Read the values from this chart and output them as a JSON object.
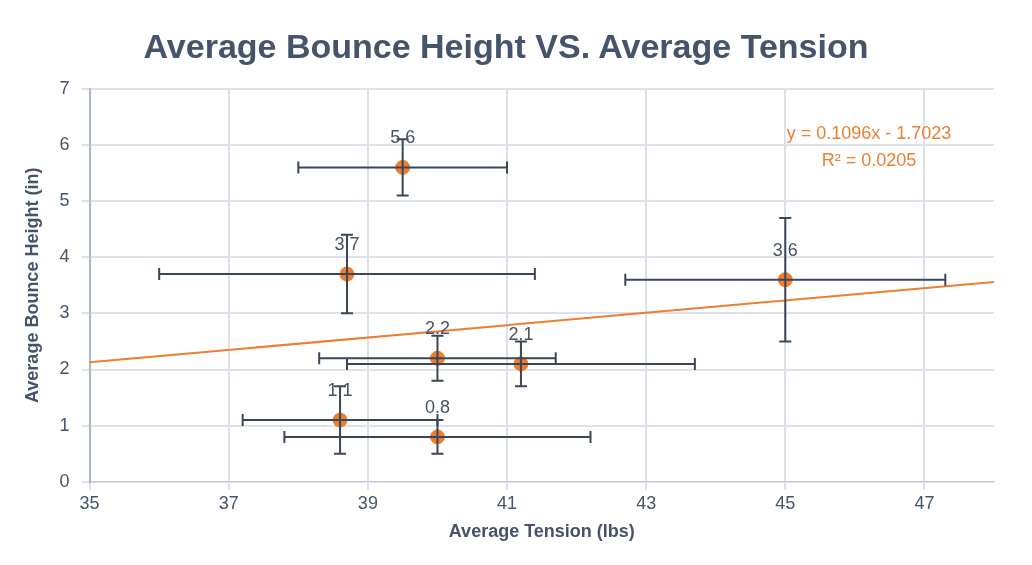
{
  "chart_data": {
    "type": "scatter",
    "title": "Average Bounce Height VS. Average Tension",
    "xlabel": "Average Tension (lbs)",
    "ylabel": "Average Bounce Height (in)",
    "series": [
      {
        "color": "#ed7d31",
        "marker": "circle",
        "x": [
          39.5,
          38.7,
          45,
          40,
          41.2,
          38.6,
          40
        ],
        "values": [
          5.6,
          3.7,
          3.6,
          2.2,
          2.1,
          1.1,
          0.8
        ],
        "value_labels": [
          "5.6",
          "3.7",
          "3.6",
          "2.2",
          "2.1",
          "1.1",
          "0.8"
        ],
        "errors": [
          0.5,
          0.7,
          1.1,
          0.4,
          0.4,
          0.6,
          0.3
        ],
        "xerrors": [
          1.5,
          2.7,
          2.3,
          1.7,
          2.5,
          1.4,
          2.2
        ]
      },
      {
        "type": "line",
        "color": "#ed7d31",
        "x": [
          35,
          48
        ],
        "values": [
          2.13,
          3.56
        ]
      }
    ],
    "annotations": [
      "y = 0.1096x - 1.7023",
      "R² = 0.0205"
    ],
    "xlim": [
      35,
      48
    ],
    "xticks": [
      35,
      37,
      39,
      41,
      43,
      45,
      47
    ],
    "ylim": [
      0,
      7
    ],
    "yticks": [
      0,
      1,
      2,
      3,
      4,
      5,
      6,
      7
    ],
    "grid": true,
    "legend": false
  }
}
